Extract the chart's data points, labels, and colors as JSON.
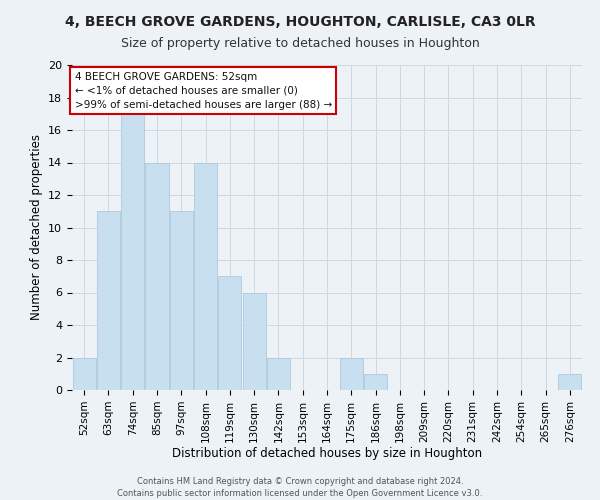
{
  "title": "4, BEECH GROVE GARDENS, HOUGHTON, CARLISLE, CA3 0LR",
  "subtitle": "Size of property relative to detached houses in Houghton",
  "xlabel": "Distribution of detached houses by size in Houghton",
  "ylabel": "Number of detached properties",
  "bar_labels": [
    "52sqm",
    "63sqm",
    "74sqm",
    "85sqm",
    "97sqm",
    "108sqm",
    "119sqm",
    "130sqm",
    "142sqm",
    "153sqm",
    "164sqm",
    "175sqm",
    "186sqm",
    "198sqm",
    "209sqm",
    "220sqm",
    "231sqm",
    "242sqm",
    "254sqm",
    "265sqm",
    "276sqm"
  ],
  "bar_values": [
    2,
    11,
    17,
    14,
    11,
    14,
    7,
    6,
    2,
    0,
    0,
    2,
    1,
    0,
    0,
    0,
    0,
    0,
    0,
    0,
    1
  ],
  "bar_color": "#c8dff0",
  "ylim": [
    0,
    20
  ],
  "yticks": [
    0,
    2,
    4,
    6,
    8,
    10,
    12,
    14,
    16,
    18,
    20
  ],
  "annotation_title": "4 BEECH GROVE GARDENS: 52sqm",
  "annotation_line1": "← <1% of detached houses are smaller (0)",
  "annotation_line2": ">99% of semi-detached houses are larger (88) →",
  "annotation_box_facecolor": "#ffffff",
  "annotation_box_edgecolor": "#cc0000",
  "footer1": "Contains HM Land Registry data © Crown copyright and database right 2024.",
  "footer2": "Contains public sector information licensed under the Open Government Licence v3.0.",
  "grid_color": "#d0d8e0",
  "background_color": "#edf2f7",
  "title_fontsize": 10,
  "subtitle_fontsize": 9,
  "axis_label_fontsize": 8.5,
  "tick_fontsize": 7.5,
  "annotation_fontsize": 7.5
}
